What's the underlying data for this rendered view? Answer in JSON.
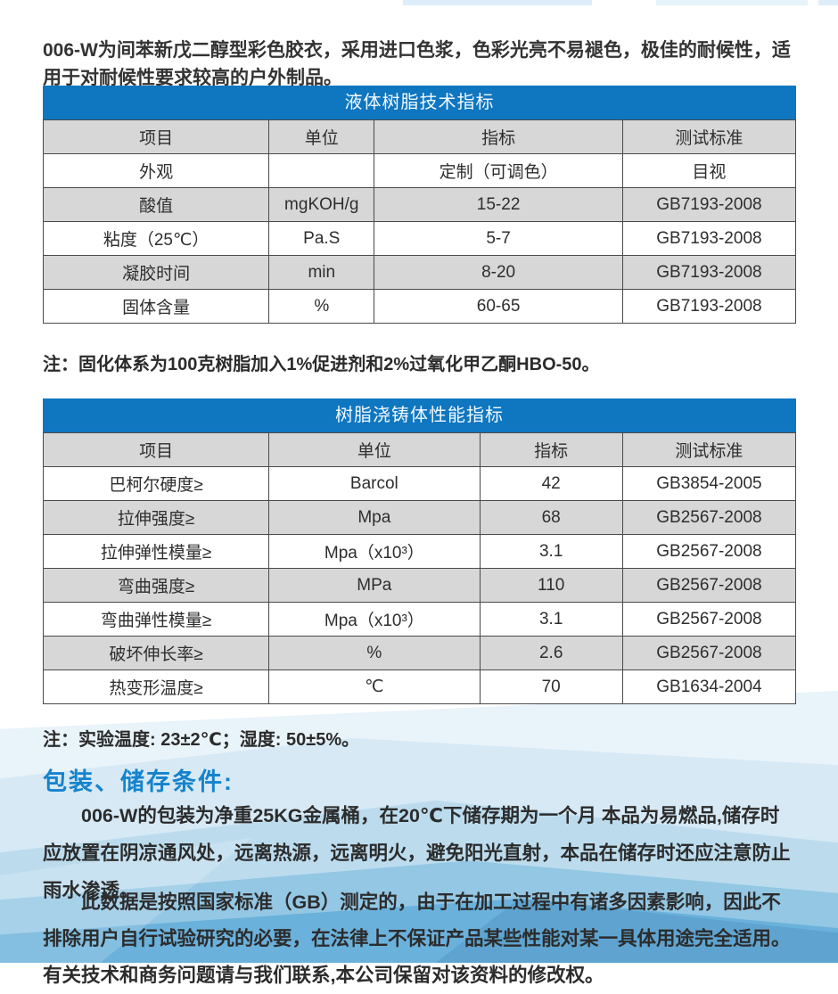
{
  "colors": {
    "table_header_blue": "#0f76c0",
    "section_heading_blue": "#1583cc",
    "row_gray": "#d7d7d7",
    "bottom_wave_blue": "#6ab1db"
  },
  "intro": "006-W为间苯新戊二醇型彩色胶衣，采用进口色浆，色彩光亮不易褪色，极佳的耐候性，适用于对耐候性要求较高的户外制品。",
  "tables": [
    {
      "title": "液体树脂技术指标",
      "headers": [
        "项目",
        "单位",
        "指标",
        "测试标准"
      ],
      "rows": [
        [
          "外观",
          "",
          "定制（可调色）",
          "目视"
        ],
        [
          "酸值",
          "mgKOH/g",
          "15-22",
          "GB7193-2008"
        ],
        [
          "粘度（25℃）",
          "Pa.S",
          "5-7",
          "GB7193-2008"
        ],
        [
          "凝胶时间",
          "min",
          "8-20",
          "GB7193-2008"
        ],
        [
          "固体含量",
          "%",
          "60-65",
          "GB7193-2008"
        ]
      ]
    },
    {
      "title": "树脂浇铸体性能指标",
      "headers": [
        "项目",
        "单位",
        "指标",
        "测试标准"
      ],
      "rows": [
        [
          "巴柯尔硬度≥",
          "Barcol",
          "42",
          "GB3854-2005"
        ],
        [
          "拉伸强度≥",
          "Mpa",
          "68",
          "GB2567-2008"
        ],
        [
          "拉伸弹性模量≥",
          "Mpa（x10³）",
          "3.1",
          "GB2567-2008"
        ],
        [
          "弯曲强度≥",
          "MPa",
          "110",
          "GB2567-2008"
        ],
        [
          "弯曲弹性模量≥",
          "Mpa（x10³）",
          "3.1",
          "GB2567-2008"
        ],
        [
          "破坏伸长率≥",
          "%",
          "2.6",
          "GB2567-2008"
        ],
        [
          "热变形温度≥",
          "℃",
          "70",
          "GB1634-2004"
        ]
      ]
    }
  ],
  "note1": "注：固化体系为100克树脂加入1%促进剂和2%过氧化甲乙酮HBO-50。",
  "note2": "注：实验温度: 23±2℃；湿度: 50±5%。",
  "storage": {
    "heading": "包装、储存条件:",
    "para1": "006-W的包装为净重25KG金属桶，在20℃下储存期为一个月 本品为易燃品,储存时应放置在阴凉通风处，远离热源，远离明火，避免阳光直射，本品在储存时还应注意防止雨水渗透。",
    "para2": "此数据是按照国家标准（GB）测定的，由于在加工过程中有诸多因素影响，因此不排除用户自行试验研究的必要，在法律上不保证产品某些性能对某一具体用途完全适用。有关技术和商务问题请与我们联系,本公司保留对该资料的修改权。"
  }
}
